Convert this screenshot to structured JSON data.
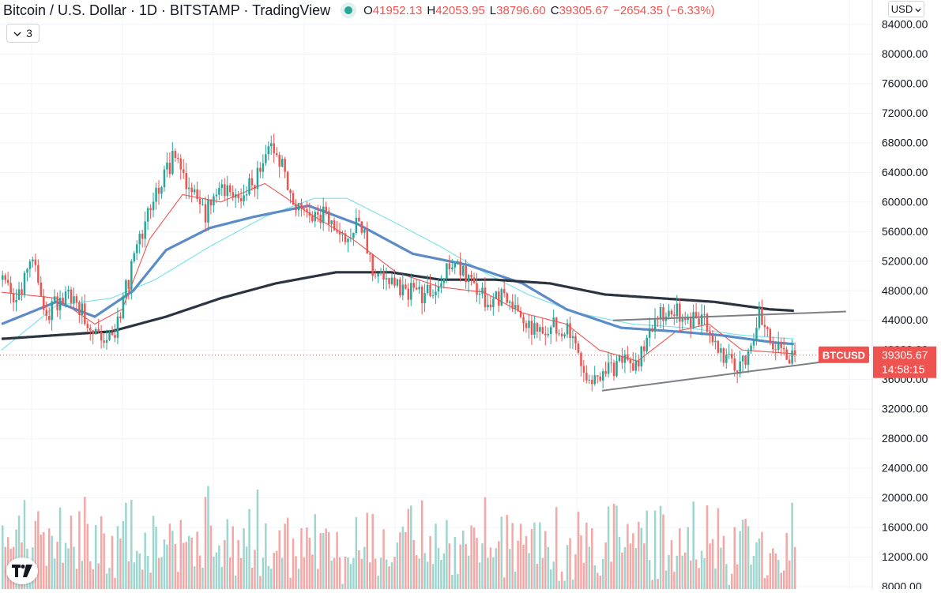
{
  "header": {
    "title": "Bitcoin / U.S. Dollar · 1D · BITSTAMP · TradingView",
    "ohlc": {
      "open_label": "O",
      "open": "41952.13",
      "high_label": "H",
      "high": "42053.95",
      "low_label": "L",
      "low": "38796.60",
      "close_label": "C",
      "close": "39305.67",
      "change": "−2654.35 (−6.33%)"
    },
    "status_color": "#26a69a"
  },
  "toolbar": {
    "indicator_count": "3",
    "currency": "USD"
  },
  "price_tag": {
    "symbol": "BTCUSD",
    "price": "39305.67",
    "countdown": "14:58:15"
  },
  "colors": {
    "up": "#26a69a",
    "down": "#ef5350",
    "ma_short": "#ef5350",
    "ma_mid": "#5b8cc7",
    "ma_cyan": "#7fe3e8",
    "ma_long": "#2b3440",
    "trendline": "#7d7f85"
  },
  "chart_data": {
    "type": "candlestick",
    "symbol": "BTCUSD",
    "exchange": "BITSTAMP",
    "interval": "1D",
    "ylim": [
      8000,
      84000
    ],
    "price_ticks": [
      84000,
      80000,
      76000,
      72000,
      68000,
      64000,
      60000,
      56000,
      52000,
      48000,
      44000,
      40000,
      36000,
      32000,
      28000,
      24000,
      20000,
      16000,
      12000,
      8000
    ],
    "last_price": 39305.67,
    "anchors": [
      [
        0,
        49000
      ],
      [
        5,
        46000
      ],
      [
        10,
        53000
      ],
      [
        16,
        45000
      ],
      [
        23,
        47500
      ],
      [
        28,
        46000
      ],
      [
        34,
        42000
      ],
      [
        40,
        41500
      ],
      [
        46,
        49500
      ],
      [
        52,
        57000
      ],
      [
        58,
        62500
      ],
      [
        63,
        66500
      ],
      [
        68,
        61500
      ],
      [
        74,
        58500
      ],
      [
        80,
        62000
      ],
      [
        86,
        61000
      ],
      [
        92,
        63000
      ],
      [
        97,
        68500
      ],
      [
        102,
        65000
      ],
      [
        107,
        59000
      ],
      [
        112,
        58000
      ],
      [
        118,
        58500
      ],
      [
        124,
        55000
      ],
      [
        130,
        57500
      ],
      [
        136,
        50000
      ],
      [
        142,
        49000
      ],
      [
        148,
        48000
      ],
      [
        154,
        47000
      ],
      [
        160,
        50000
      ],
      [
        166,
        51500
      ],
      [
        172,
        48000
      ],
      [
        178,
        46500
      ],
      [
        184,
        47500
      ],
      [
        190,
        43000
      ],
      [
        196,
        42000
      ],
      [
        202,
        43500
      ],
      [
        208,
        42000
      ],
      [
        214,
        35000
      ],
      [
        220,
        37500
      ],
      [
        226,
        38000
      ],
      [
        232,
        38500
      ],
      [
        238,
        44000
      ],
      [
        244,
        45500
      ],
      [
        250,
        44000
      ],
      [
        256,
        44500
      ],
      [
        262,
        39500
      ],
      [
        268,
        38000
      ],
      [
        274,
        40500
      ],
      [
        276,
        44500
      ],
      [
        280,
        41000
      ],
      [
        286,
        38500
      ],
      [
        289,
        39305.67
      ]
    ],
    "sma_short": [
      [
        0,
        47800
      ],
      [
        20,
        47000
      ],
      [
        34,
        43500
      ],
      [
        44,
        45500
      ],
      [
        54,
        55000
      ],
      [
        66,
        61000
      ],
      [
        80,
        60000
      ],
      [
        96,
        62500
      ],
      [
        112,
        58500
      ],
      [
        128,
        55000
      ],
      [
        144,
        50500
      ],
      [
        160,
        48500
      ],
      [
        176,
        47800
      ],
      [
        190,
        45000
      ],
      [
        206,
        43500
      ],
      [
        218,
        40000
      ],
      [
        232,
        38500
      ],
      [
        246,
        42500
      ],
      [
        258,
        43500
      ],
      [
        270,
        40000
      ],
      [
        289,
        39500
      ]
    ],
    "sma_mid": [
      [
        0,
        43500
      ],
      [
        20,
        46500
      ],
      [
        34,
        44500
      ],
      [
        48,
        48000
      ],
      [
        60,
        53500
      ],
      [
        76,
        56500
      ],
      [
        92,
        58000
      ],
      [
        112,
        59500
      ],
      [
        130,
        57000
      ],
      [
        150,
        53000
      ],
      [
        170,
        51500
      ],
      [
        190,
        49000
      ],
      [
        206,
        45500
      ],
      [
        226,
        43000
      ],
      [
        246,
        42500
      ],
      [
        262,
        42000
      ],
      [
        282,
        41000
      ],
      [
        289,
        40800
      ]
    ],
    "sma_cyan": [
      [
        0,
        40000
      ],
      [
        20,
        46000
      ],
      [
        40,
        47000
      ],
      [
        56,
        49500
      ],
      [
        76,
        54000
      ],
      [
        96,
        58000
      ],
      [
        114,
        60500
      ],
      [
        126,
        60500
      ],
      [
        142,
        57500
      ],
      [
        160,
        54000
      ],
      [
        176,
        50500
      ],
      [
        192,
        47500
      ],
      [
        210,
        45000
      ],
      [
        230,
        43500
      ],
      [
        250,
        43000
      ],
      [
        270,
        42000
      ],
      [
        289,
        41500
      ]
    ],
    "sma_long": [
      [
        0,
        41500
      ],
      [
        20,
        42000
      ],
      [
        40,
        42500
      ],
      [
        60,
        44500
      ],
      [
        80,
        47000
      ],
      [
        100,
        49000
      ],
      [
        122,
        50500
      ],
      [
        142,
        50500
      ],
      [
        160,
        49500
      ],
      [
        180,
        49500
      ],
      [
        200,
        49000
      ],
      [
        220,
        47500
      ],
      [
        240,
        47000
      ],
      [
        260,
        46500
      ],
      [
        280,
        45500
      ],
      [
        289,
        45300
      ]
    ],
    "trendlines": [
      {
        "from": [
          223,
          44000
        ],
        "to": [
          308,
          45200
        ]
      },
      {
        "from": [
          219,
          34500
        ],
        "to": [
          308,
          38800
        ]
      }
    ],
    "volume_scale": {
      "baseline": 8000,
      "per_unit": 1
    },
    "volume_bars": 290
  }
}
